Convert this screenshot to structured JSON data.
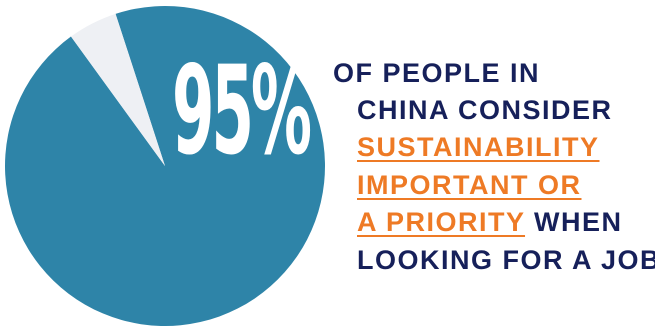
{
  "chart_data": {
    "type": "pie",
    "slices": [
      {
        "value": 95,
        "color": "#2e84a8"
      },
      {
        "value": 5,
        "color": "#eef0f4"
      }
    ],
    "start_angle_deg": -18
  },
  "headline": {
    "stat": "95%",
    "line1": "OF PEOPLE IN",
    "line2": "CHINA CONSIDER",
    "line3": "SUSTAINABILITY",
    "line4": "IMPORTANT OR",
    "line5_highlight": "A PRIORITY",
    "line5_rest": " WHEN",
    "line6": "LOOKING FOR A JOB"
  },
  "colors": {
    "accent": "#ee7a25",
    "text": "#16205a"
  }
}
